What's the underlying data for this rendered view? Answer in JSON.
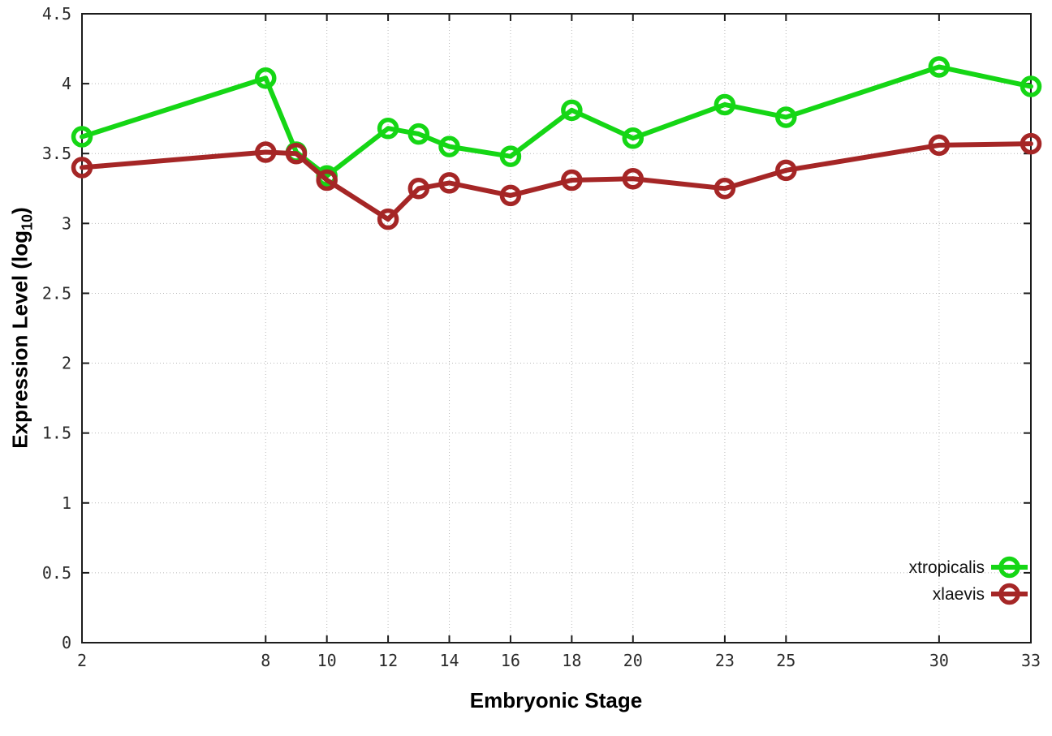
{
  "axis_titles": {
    "x": "Embryonic Stage",
    "y_prefix": "Expression Level (log",
    "y_sub": "10",
    "y_suffix": ")"
  },
  "legend": {
    "items": [
      {
        "label": "xtropicalis",
        "color": "#15d615"
      },
      {
        "label": "xlaevis",
        "color": "#a52626"
      }
    ]
  },
  "chart_data": {
    "type": "line",
    "title": "",
    "xlabel": "Embryonic Stage",
    "ylabel": "Expression Level (log10)",
    "x": [
      2,
      8,
      9,
      10,
      12,
      13,
      14,
      16,
      18,
      20,
      23,
      25,
      30,
      33
    ],
    "series": [
      {
        "name": "xtropicalis",
        "color": "#15d615",
        "values": [
          3.62,
          4.04,
          3.51,
          3.34,
          3.68,
          3.64,
          3.55,
          3.48,
          3.81,
          3.61,
          3.85,
          3.76,
          4.12,
          3.98
        ]
      },
      {
        "name": "xlaevis",
        "color": "#a52626",
        "values": [
          3.4,
          3.51,
          3.5,
          3.31,
          3.03,
          3.25,
          3.29,
          3.2,
          3.31,
          3.32,
          3.25,
          3.38,
          3.56,
          3.57
        ]
      }
    ],
    "xlim": [
      2,
      33
    ],
    "ylim": [
      0,
      4.5
    ],
    "xticks": [
      2,
      8,
      10,
      12,
      14,
      16,
      18,
      20,
      23,
      25,
      30,
      33
    ],
    "yticks": [
      0,
      0.5,
      1,
      1.5,
      2,
      2.5,
      3,
      3.5,
      4,
      4.5
    ],
    "grid": true,
    "marker": "open-circle",
    "legend_position": "bottom-right"
  }
}
